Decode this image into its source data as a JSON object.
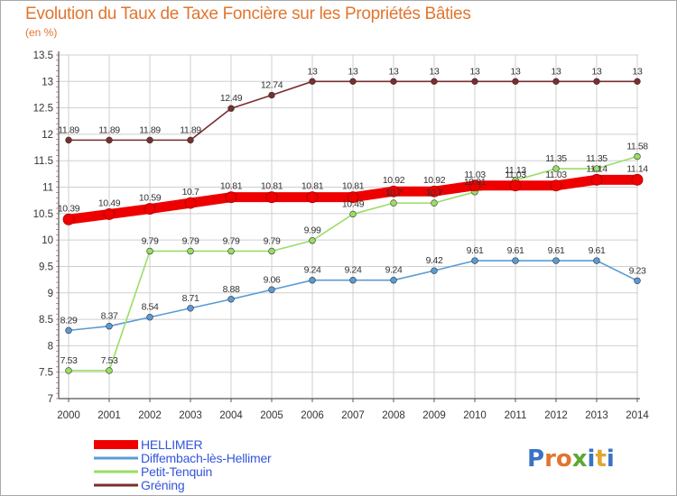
{
  "title": "Evolution du Taux de Taxe Foncière sur les Propriétés Bâties",
  "subtitle": "(en %)",
  "watermark": "Proxiti",
  "colors": {
    "title": "#e0762f",
    "grid": "#cfcfcf",
    "axis": "#555555",
    "legend_text": "#3355dd"
  },
  "chart_data": {
    "type": "line",
    "title": "Evolution du Taux de Taxe Foncière sur les Propriétés Bâties",
    "ylabel": "(en %)",
    "xlabel": "",
    "x": [
      "2000",
      "2001",
      "2002",
      "2003",
      "2004",
      "2005",
      "2006",
      "2007",
      "2008",
      "2009",
      "2010",
      "2011",
      "2012",
      "2013",
      "2014"
    ],
    "ylim": [
      7,
      13.5
    ],
    "yticks": [
      "7",
      "7.5",
      "8",
      "8.5",
      "9",
      "9.5",
      "10",
      "10.5",
      "11",
      "11.5",
      "12",
      "12.5",
      "13",
      "13.5"
    ],
    "grid": true,
    "legend_position": "bottom-left",
    "series": [
      {
        "name": "HELLIMER",
        "color": "#ee0000",
        "values": [
          10.39,
          10.49,
          10.59,
          10.7,
          10.81,
          10.81,
          10.81,
          10.81,
          10.92,
          10.92,
          11.03,
          11.03,
          11.03,
          11.14,
          11.14
        ],
        "labels": [
          "10.39",
          "10.49",
          "10.59",
          "10.7",
          "10.81",
          "10.81",
          "10.81",
          "10.81",
          "10.92",
          "10.92",
          "11.03",
          "11.03",
          "11.03",
          "11.14",
          "11.14"
        ]
      },
      {
        "name": "Diffembach-lès-Hellimer",
        "color": "#5b9bd5",
        "values": [
          8.29,
          8.37,
          8.54,
          8.71,
          8.88,
          9.06,
          9.24,
          9.24,
          9.24,
          9.42,
          9.61,
          9.61,
          9.61,
          9.61,
          9.23
        ],
        "labels": [
          "8.29",
          "8.37",
          "8.54",
          "8.71",
          "8.88",
          "9.06",
          "9.24",
          "9.24",
          "9.24",
          "9.42",
          "9.61",
          "9.61",
          "9.61",
          "9.61",
          "9.23"
        ]
      },
      {
        "name": "Petit-Tenquin",
        "color": "#99dd66",
        "values": [
          7.53,
          7.53,
          9.79,
          9.79,
          9.79,
          9.79,
          9.99,
          10.49,
          10.7,
          10.7,
          10.91,
          11.13,
          11.35,
          11.35,
          11.58
        ],
        "labels": [
          "7.53",
          "7.53",
          "9.79",
          "9.79",
          "9.79",
          "9.79",
          "9.99",
          "10.49",
          "10.7",
          "10.7",
          "10.91",
          "11.13",
          "11.35",
          "11.35",
          "11.58"
        ]
      },
      {
        "name": "Gréning",
        "color": "#7a2e2e",
        "values": [
          11.89,
          11.89,
          11.89,
          11.89,
          12.49,
          12.74,
          13,
          13,
          13,
          13,
          13,
          13,
          13,
          13,
          13
        ],
        "labels": [
          "11.89",
          "11.89",
          "11.89",
          "11.89",
          "12.49",
          "12.74",
          "13",
          "13",
          "13",
          "13",
          "13",
          "13",
          "13",
          "13",
          "13"
        ]
      }
    ]
  }
}
